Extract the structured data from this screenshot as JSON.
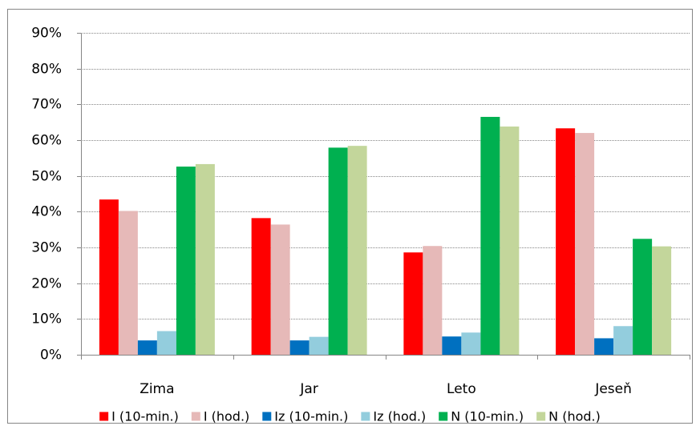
{
  "chart_data": {
    "type": "bar",
    "categories": [
      "Zima",
      "Jar",
      "Leto",
      "Jeseň"
    ],
    "series": [
      {
        "name": "I (10-min.)",
        "color": "#ff0000",
        "values": [
          43.4,
          38.2,
          28.6,
          63.3
        ]
      },
      {
        "name": "I (hod.)",
        "color": "#e6b9b8",
        "values": [
          40.2,
          36.4,
          30.4,
          62.0
        ]
      },
      {
        "name": "Iz (10-min.)",
        "color": "#0070c0",
        "values": [
          4.0,
          4.0,
          5.1,
          4.6
        ]
      },
      {
        "name": "Iz (hod.)",
        "color": "#93cddd",
        "values": [
          6.6,
          5.0,
          6.2,
          8.0
        ]
      },
      {
        "name": "N (10-min.)",
        "color": "#00b050",
        "values": [
          52.6,
          57.9,
          66.5,
          32.4
        ]
      },
      {
        "name": "N (hod.)",
        "color": "#c3d69b",
        "values": [
          53.3,
          58.4,
          63.8,
          30.3
        ]
      }
    ],
    "y_tick_labels": [
      "0%",
      "10%",
      "20%",
      "30%",
      "40%",
      "50%",
      "60%",
      "70%",
      "80%",
      "90%"
    ],
    "ylim": [
      0,
      90
    ],
    "y_unit": "%",
    "grid": true,
    "legend_position": "bottom",
    "title": "",
    "xlabel": "",
    "ylabel": ""
  }
}
